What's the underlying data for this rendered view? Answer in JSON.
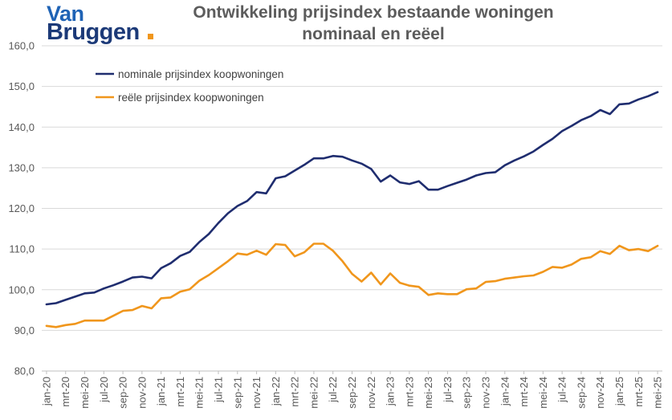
{
  "logo": {
    "word1": "Van",
    "word2": "Bruggen"
  },
  "colors": {
    "nominal": "#1f2d6f",
    "real": "#f0961c",
    "grid": "#d9d9d9",
    "logo_dot": "#f0961c"
  },
  "chart_data": {
    "type": "line",
    "title": "Ontwikkeling prijsindex bestaande woningen",
    "subtitle": "nominaal en reëel",
    "xlabel": "",
    "ylabel": "",
    "ylim": [
      80,
      160
    ],
    "yticks": [
      "80,0",
      "90,0",
      "100,0",
      "110,0",
      "120,0",
      "130,0",
      "140,0",
      "150,0",
      "160,0"
    ],
    "grid": "horizontal",
    "legend_position": "top-left",
    "x": [
      "jan-20",
      "feb-20",
      "mrt-20",
      "apr-20",
      "mei-20",
      "jun-20",
      "jul-20",
      "aug-20",
      "sep-20",
      "okt-20",
      "nov-20",
      "dec-20",
      "jan-21",
      "feb-21",
      "mrt-21",
      "apr-21",
      "mei-21",
      "jun-21",
      "jul-21",
      "aug-21",
      "sep-21",
      "okt-21",
      "nov-21",
      "dec-21",
      "jan-22",
      "feb-22",
      "mrt-22",
      "apr-22",
      "mei-22",
      "jun-22",
      "jul-22",
      "aug-22",
      "sep-22",
      "okt-22",
      "nov-22",
      "dec-22",
      "jan-23",
      "feb-23",
      "mrt-23",
      "apr-23",
      "mei-23",
      "jun-23",
      "jul-23",
      "aug-23",
      "sep-23",
      "okt-23",
      "nov-23",
      "dec-23",
      "jan-24",
      "feb-24",
      "mrt-24",
      "apr-24",
      "mei-24",
      "jun-24",
      "jul-24",
      "aug-24",
      "sep-24",
      "okt-24",
      "nov-24",
      "dec-24",
      "jan-25",
      "feb-25",
      "mrt-25",
      "apr-25",
      "mei-25"
    ],
    "xtick_labels": [
      "jan-20",
      "mrt-20",
      "mei-20",
      "jul-20",
      "sep-20",
      "nov-20",
      "jan-21",
      "mrt-21",
      "mei-21",
      "jul-21",
      "sep-21",
      "nov-21",
      "jan-22",
      "mrt-22",
      "mei-22",
      "jul-22",
      "sep-22",
      "nov-22",
      "jan-23",
      "mrt-23",
      "mei-23",
      "jul-23",
      "sep-23",
      "nov-23",
      "jan-24",
      "mrt-24",
      "mei-24",
      "jul-24",
      "sep-24",
      "nov-24",
      "jan-25",
      "mrt-25",
      "mei-25"
    ],
    "series": [
      {
        "name": "nominale prijsindex koopwoningen",
        "values": [
          96.4,
          96.7,
          97.5,
          98.3,
          99.1,
          99.3,
          100.3,
          101.1,
          102.0,
          103.0,
          103.2,
          102.8,
          105.3,
          106.5,
          108.3,
          109.3,
          111.7,
          113.7,
          116.4,
          118.8,
          120.6,
          121.8,
          124.0,
          123.7,
          127.4,
          127.9,
          129.3,
          130.7,
          132.3,
          132.3,
          132.9,
          132.7,
          131.8,
          131.0,
          129.7,
          126.6,
          128.1,
          126.4,
          126.0,
          126.7,
          124.6,
          124.6,
          125.5,
          126.3,
          127.1,
          128.1,
          128.7,
          128.9,
          130.6,
          131.8,
          132.8,
          134.0,
          135.6,
          137.1,
          139.0,
          140.3,
          141.7,
          142.7,
          144.2,
          143.2,
          145.6,
          145.8,
          146.8,
          147.6,
          148.6
        ]
      },
      {
        "name": "reële prijsindex koopwoningen",
        "values": [
          91.1,
          90.8,
          91.3,
          91.6,
          92.4,
          92.4,
          92.4,
          93.6,
          94.8,
          95.0,
          96.0,
          95.4,
          97.9,
          98.1,
          99.5,
          100.1,
          102.2,
          103.6,
          105.3,
          107.0,
          108.9,
          108.6,
          109.6,
          108.6,
          111.2,
          111.0,
          108.2,
          109.2,
          111.3,
          111.3,
          109.6,
          107.0,
          103.9,
          102.0,
          104.2,
          101.3,
          104.0,
          101.7,
          101.0,
          100.7,
          98.7,
          99.1,
          98.9,
          98.9,
          100.1,
          100.3,
          101.9,
          102.1,
          102.7,
          103.0,
          103.3,
          103.5,
          104.4,
          105.6,
          105.4,
          106.2,
          107.6,
          108.0,
          109.5,
          108.8,
          110.8,
          109.7,
          110.0,
          109.5,
          110.8
        ]
      }
    ]
  }
}
